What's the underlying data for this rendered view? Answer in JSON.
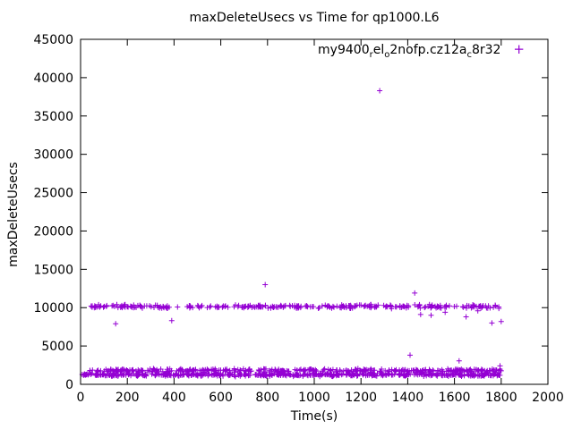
{
  "chart_data": {
    "type": "scatter",
    "title": "maxDeleteUsecs vs Time for qp1000.L6",
    "xlabel": "Time(s)",
    "ylabel": "maxDeleteUsecs",
    "xlim": [
      0,
      2000
    ],
    "ylim": [
      0,
      45000
    ],
    "x_ticks": [
      0,
      200,
      400,
      600,
      800,
      1000,
      1200,
      1400,
      1600,
      1800,
      2000
    ],
    "y_ticks": [
      0,
      5000,
      10000,
      15000,
      20000,
      25000,
      30000,
      35000,
      40000,
      45000
    ],
    "grid": false,
    "legend_position": "top-right-inside",
    "series": [
      {
        "name": "my9400_rel_o2nofp.cz12a_c8r32",
        "color": "#9400D3",
        "marker": "plus",
        "bands": [
          {
            "label": "upper-band",
            "x_range": [
              25,
              1800
            ],
            "y_center": 10150,
            "y_spread": 350,
            "count": 300
          },
          {
            "label": "lower-band-top",
            "x_range": [
              5,
              1800
            ],
            "y_center": 1800,
            "y_spread": 300,
            "count": 350
          },
          {
            "label": "lower-band-main",
            "x_range": [
              5,
              1800
            ],
            "y_center": 1250,
            "y_spread": 300,
            "count": 500
          }
        ],
        "outliers": [
          [
            150,
            7900
          ],
          [
            390,
            8300
          ],
          [
            790,
            13000
          ],
          [
            1280,
            38300
          ],
          [
            1410,
            3800
          ],
          [
            1430,
            11900
          ],
          [
            1455,
            9100
          ],
          [
            1500,
            9000
          ],
          [
            1560,
            9400
          ],
          [
            1620,
            3050
          ],
          [
            1650,
            8800
          ],
          [
            1700,
            9600
          ],
          [
            1760,
            8000
          ],
          [
            1790,
            9900
          ],
          [
            1795,
            2400
          ],
          [
            1800,
            8200
          ]
        ]
      }
    ]
  },
  "legend": {
    "parts": [
      {
        "t": "my9400"
      },
      {
        "t": "r",
        "sub": true
      },
      {
        "t": "el"
      },
      {
        "t": "o",
        "sub": true
      },
      {
        "t": "2nofp.cz12a"
      },
      {
        "t": "c",
        "sub": true
      },
      {
        "t": "8r32"
      }
    ],
    "marker": "+"
  }
}
